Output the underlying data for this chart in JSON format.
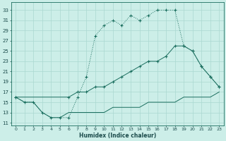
{
  "title": "",
  "xlabel": "Humidex (Indice chaleur)",
  "bg_color": "#cceee8",
  "line_color": "#1a6e5e",
  "grid_color": "#aad8d0",
  "xlim": [
    -0.5,
    23.5
  ],
  "ylim": [
    10.5,
    34.5
  ],
  "xticks": [
    0,
    1,
    2,
    3,
    4,
    5,
    6,
    7,
    8,
    9,
    10,
    11,
    12,
    13,
    14,
    15,
    16,
    17,
    18,
    19,
    20,
    21,
    22,
    23
  ],
  "yticks": [
    11,
    13,
    15,
    17,
    19,
    21,
    23,
    25,
    27,
    29,
    31,
    33
  ],
  "line1_x": [
    0,
    1,
    2,
    3,
    4,
    5,
    6,
    7,
    8,
    9,
    10,
    11,
    12,
    13,
    14,
    15,
    16,
    17,
    18,
    19,
    20,
    21,
    22,
    23
  ],
  "line1_y": [
    16,
    15,
    15,
    13,
    12,
    12,
    12,
    16,
    20,
    28,
    30,
    31,
    30,
    32,
    31,
    32,
    33,
    33,
    33,
    26,
    25,
    22,
    20,
    18
  ],
  "line2_x": [
    0,
    6,
    7,
    8,
    9,
    10,
    11,
    12,
    13,
    14,
    15,
    16,
    17,
    18,
    19,
    20,
    21,
    22,
    23
  ],
  "line2_y": [
    16,
    16,
    17,
    17,
    18,
    18,
    19,
    20,
    21,
    22,
    23,
    23,
    24,
    26,
    26,
    25,
    22,
    20,
    18
  ],
  "line3_x": [
    0,
    1,
    2,
    3,
    4,
    5,
    6,
    7,
    8,
    9,
    10,
    11,
    12,
    13,
    14,
    15,
    16,
    17,
    18,
    19,
    20,
    21,
    22,
    23
  ],
  "line3_y": [
    16,
    15,
    15,
    13,
    12,
    12,
    13,
    13,
    13,
    13,
    13,
    14,
    14,
    14,
    14,
    15,
    15,
    15,
    15,
    16,
    16,
    16,
    16,
    17
  ]
}
